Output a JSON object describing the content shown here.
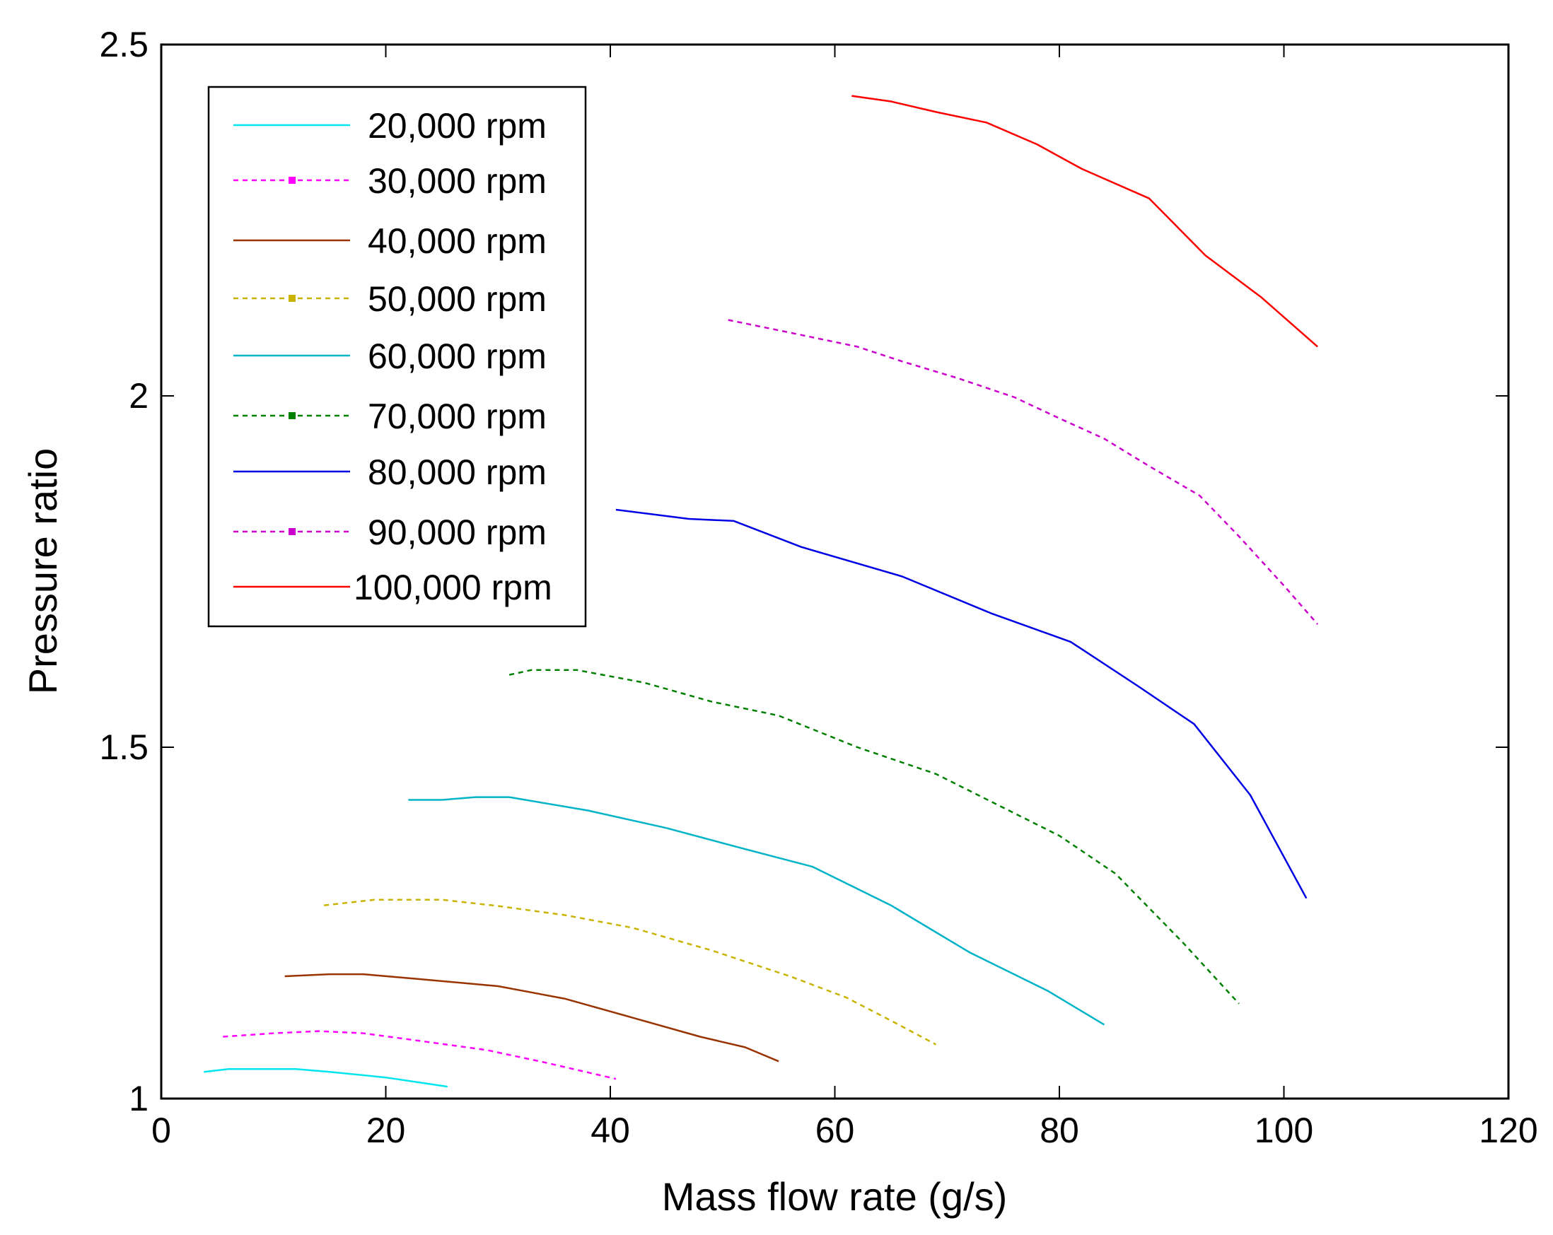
{
  "chart_data": {
    "type": "line",
    "title": "",
    "xlabel": "Mass flow rate (g/s)",
    "ylabel": "Pressure ratio",
    "xlim": [
      0,
      120
    ],
    "ylim": [
      1,
      2.5
    ],
    "xticks": [
      0,
      20,
      40,
      60,
      80,
      100,
      120
    ],
    "yticks": [
      1,
      1.5,
      2,
      2.5
    ],
    "xtick_labels": [
      "0",
      "20",
      "40",
      "60",
      "80",
      "100",
      "120"
    ],
    "ytick_labels": [
      "1",
      "1.5",
      "2",
      "2.5"
    ],
    "grid": false,
    "legend_position": "top-left",
    "series": [
      {
        "name": "20,000 rpm",
        "color": "#00e5ee",
        "dashed": false,
        "marker": false,
        "x": [
          3.8,
          6,
          12,
          15,
          20,
          25.5
        ],
        "y": [
          1.038,
          1.042,
          1.042,
          1.038,
          1.03,
          1.017
        ]
      },
      {
        "name": "30,000 rpm",
        "color": "#ff00ff",
        "dashed": true,
        "marker": true,
        "x": [
          5.5,
          10,
          14,
          18,
          24,
          29,
          34,
          40.5
        ],
        "y": [
          1.088,
          1.093,
          1.096,
          1.093,
          1.08,
          1.069,
          1.052,
          1.028
        ]
      },
      {
        "name": "40,000 rpm",
        "color": "#993300",
        "dashed": false,
        "marker": false,
        "x": [
          11,
          15,
          18,
          23,
          30,
          36,
          42,
          48,
          52,
          55
        ],
        "y": [
          1.174,
          1.177,
          1.177,
          1.17,
          1.16,
          1.142,
          1.115,
          1.088,
          1.073,
          1.053
        ]
      },
      {
        "name": "50,000 rpm",
        "color": "#c8b400",
        "dashed": true,
        "marker": true,
        "x": [
          14.5,
          19,
          25,
          30,
          36,
          42,
          49,
          56,
          61,
          65,
          69
        ],
        "y": [
          1.275,
          1.283,
          1.283,
          1.274,
          1.261,
          1.243,
          1.211,
          1.174,
          1.144,
          1.111,
          1.077
        ]
      },
      {
        "name": "60,000 rpm",
        "color": "#00b4c8",
        "dashed": false,
        "marker": false,
        "x": [
          22,
          25,
          28,
          31,
          38,
          45,
          52,
          58,
          65,
          72,
          79,
          84
        ],
        "y": [
          1.425,
          1.425,
          1.429,
          1.429,
          1.41,
          1.385,
          1.355,
          1.33,
          1.275,
          1.208,
          1.153,
          1.105
        ]
      },
      {
        "name": "70,000 rpm",
        "color": "#008000",
        "dashed": true,
        "marker": true,
        "x": [
          31,
          33,
          37,
          43,
          49,
          55,
          62,
          69,
          75,
          80,
          85,
          91,
          96
        ],
        "y": [
          1.603,
          1.61,
          1.61,
          1.592,
          1.565,
          1.545,
          1.5,
          1.462,
          1.414,
          1.374,
          1.32,
          1.222,
          1.135
        ]
      },
      {
        "name": "80,000 rpm",
        "color": "#0000e6",
        "dashed": false,
        "marker": false,
        "x": [
          40.5,
          47,
          51,
          57,
          66,
          74,
          81,
          87,
          92,
          97,
          102
        ],
        "y": [
          1.838,
          1.825,
          1.822,
          1.785,
          1.743,
          1.69,
          1.65,
          1.587,
          1.533,
          1.432,
          1.285
        ]
      },
      {
        "name": "90,000 rpm",
        "color": "#cc00cc",
        "dashed": true,
        "marker": true,
        "x": [
          50.5,
          56,
          62,
          66,
          71,
          76,
          80,
          84,
          88,
          92.5,
          96,
          100,
          103
        ],
        "y": [
          2.108,
          2.09,
          2.07,
          2.049,
          2.025,
          1.998,
          1.968,
          1.939,
          1.9,
          1.858,
          1.8,
          1.73,
          1.675
        ]
      },
      {
        "name": "100,000 rpm",
        "color": "#ff0000",
        "dashed": false,
        "marker": false,
        "x": [
          61.5,
          65,
          69,
          73.5,
          78,
          82,
          88,
          93,
          98,
          103
        ],
        "y": [
          2.427,
          2.419,
          2.404,
          2.389,
          2.358,
          2.323,
          2.281,
          2.2,
          2.14,
          2.07
        ]
      }
    ]
  }
}
